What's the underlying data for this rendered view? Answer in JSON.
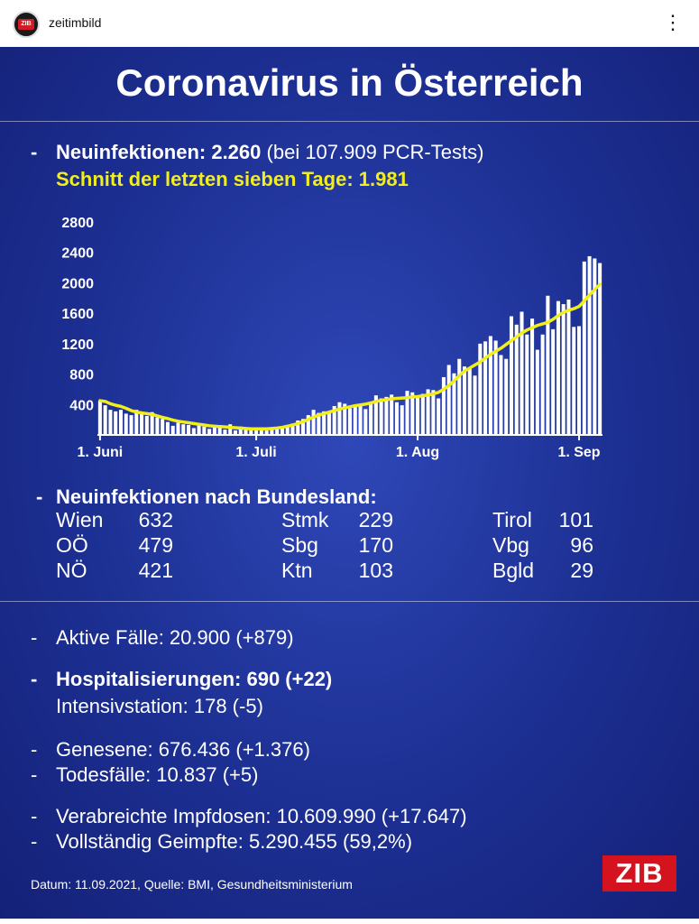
{
  "instagram": {
    "username": "zeitimbild",
    "avatar_text": "ZIB"
  },
  "title": "Coronavirus in Österreich",
  "new_infections": {
    "label": "Neuinfektionen: 2.260",
    "tests": "(bei 107.909 PCR-Tests)",
    "avg": "Schnitt der letzten sieben Tage: 1.981"
  },
  "chart_data": {
    "type": "bar",
    "y_ticks": [
      "2800",
      "2400",
      "2000",
      "1600",
      "1200",
      "800",
      "400"
    ],
    "ylim": [
      0,
      2800
    ],
    "x_tick_labels": [
      "1. Juni",
      "1. Juli",
      "1. Aug",
      "1. Sep"
    ],
    "x_tick_index": [
      0,
      30,
      61,
      92
    ],
    "line_color": "#f2ee1c",
    "bar_color": "#ffffff",
    "values": [
      450,
      390,
      330,
      310,
      330,
      280,
      260,
      330,
      290,
      250,
      300,
      230,
      210,
      170,
      120,
      160,
      140,
      130,
      90,
      150,
      110,
      80,
      120,
      130,
      70,
      140,
      60,
      110,
      90,
      80,
      70,
      70,
      60,
      80,
      90,
      110,
      120,
      150,
      190,
      210,
      260,
      330,
      290,
      310,
      300,
      380,
      430,
      410,
      350,
      370,
      390,
      340,
      410,
      520,
      480,
      500,
      530,
      430,
      390,
      580,
      560,
      490,
      540,
      600,
      590,
      480,
      760,
      920,
      810,
      1000,
      900,
      890,
      780,
      1200,
      1230,
      1300,
      1240,
      1050,
      1000,
      1560,
      1450,
      1620,
      1320,
      1530,
      1120,
      1320,
      1830,
      1390,
      1760,
      1720,
      1780,
      1420,
      1430,
      2280,
      2350,
      2320,
      2260
    ],
    "avg": [
      450,
      440,
      410,
      390,
      375,
      350,
      320,
      300,
      290,
      280,
      270,
      250,
      230,
      215,
      195,
      180,
      170,
      160,
      150,
      140,
      130,
      120,
      115,
      110,
      105,
      100,
      95,
      90,
      85,
      80,
      80,
      80,
      80,
      85,
      90,
      100,
      115,
      130,
      150,
      175,
      205,
      235,
      260,
      280,
      300,
      320,
      340,
      355,
      370,
      385,
      395,
      405,
      420,
      440,
      455,
      465,
      475,
      480,
      485,
      490,
      500,
      505,
      515,
      525,
      540,
      560,
      600,
      650,
      710,
      780,
      840,
      880,
      920,
      960,
      1010,
      1060,
      1100,
      1140,
      1190,
      1240,
      1290,
      1340,
      1380,
      1410,
      1440,
      1460,
      1480,
      1520,
      1570,
      1610,
      1640,
      1660,
      1690,
      1760,
      1840,
      1910,
      1981
    ]
  },
  "bundesland": {
    "heading": "Neuinfektionen nach Bundesland:",
    "rows": [
      {
        "name": "Wien",
        "value": "632"
      },
      {
        "name": "OÖ",
        "value": "479"
      },
      {
        "name": "NÖ",
        "value": "421"
      },
      {
        "name": "Stmk",
        "value": "229"
      },
      {
        "name": "Sbg",
        "value": "170"
      },
      {
        "name": "Ktn",
        "value": "103"
      },
      {
        "name": "Tirol",
        "value": "101"
      },
      {
        "name": "Vbg",
        "value": "96"
      },
      {
        "name": "Bgld",
        "value": "29"
      }
    ]
  },
  "stats": {
    "active": "Aktive Fälle: 20.900 (+879)",
    "hospital": "Hospitalisierungen: 690 (+22)",
    "icu": "Intensivstation: 178 (-5)",
    "recovered": "Genesene: 676.436 (+1.376)",
    "deaths": "Todesfälle: 10.837 (+5)",
    "doses": "Verabreichte Impfdosen: 10.609.990 (+17.647)",
    "vaccinated": "Vollständig Geimpfte: 5.290.455 (59,2%)"
  },
  "footer": "Datum: 11.09.2021, Quelle: BMI, Gesundheitsministerium",
  "logo": "ZIB"
}
